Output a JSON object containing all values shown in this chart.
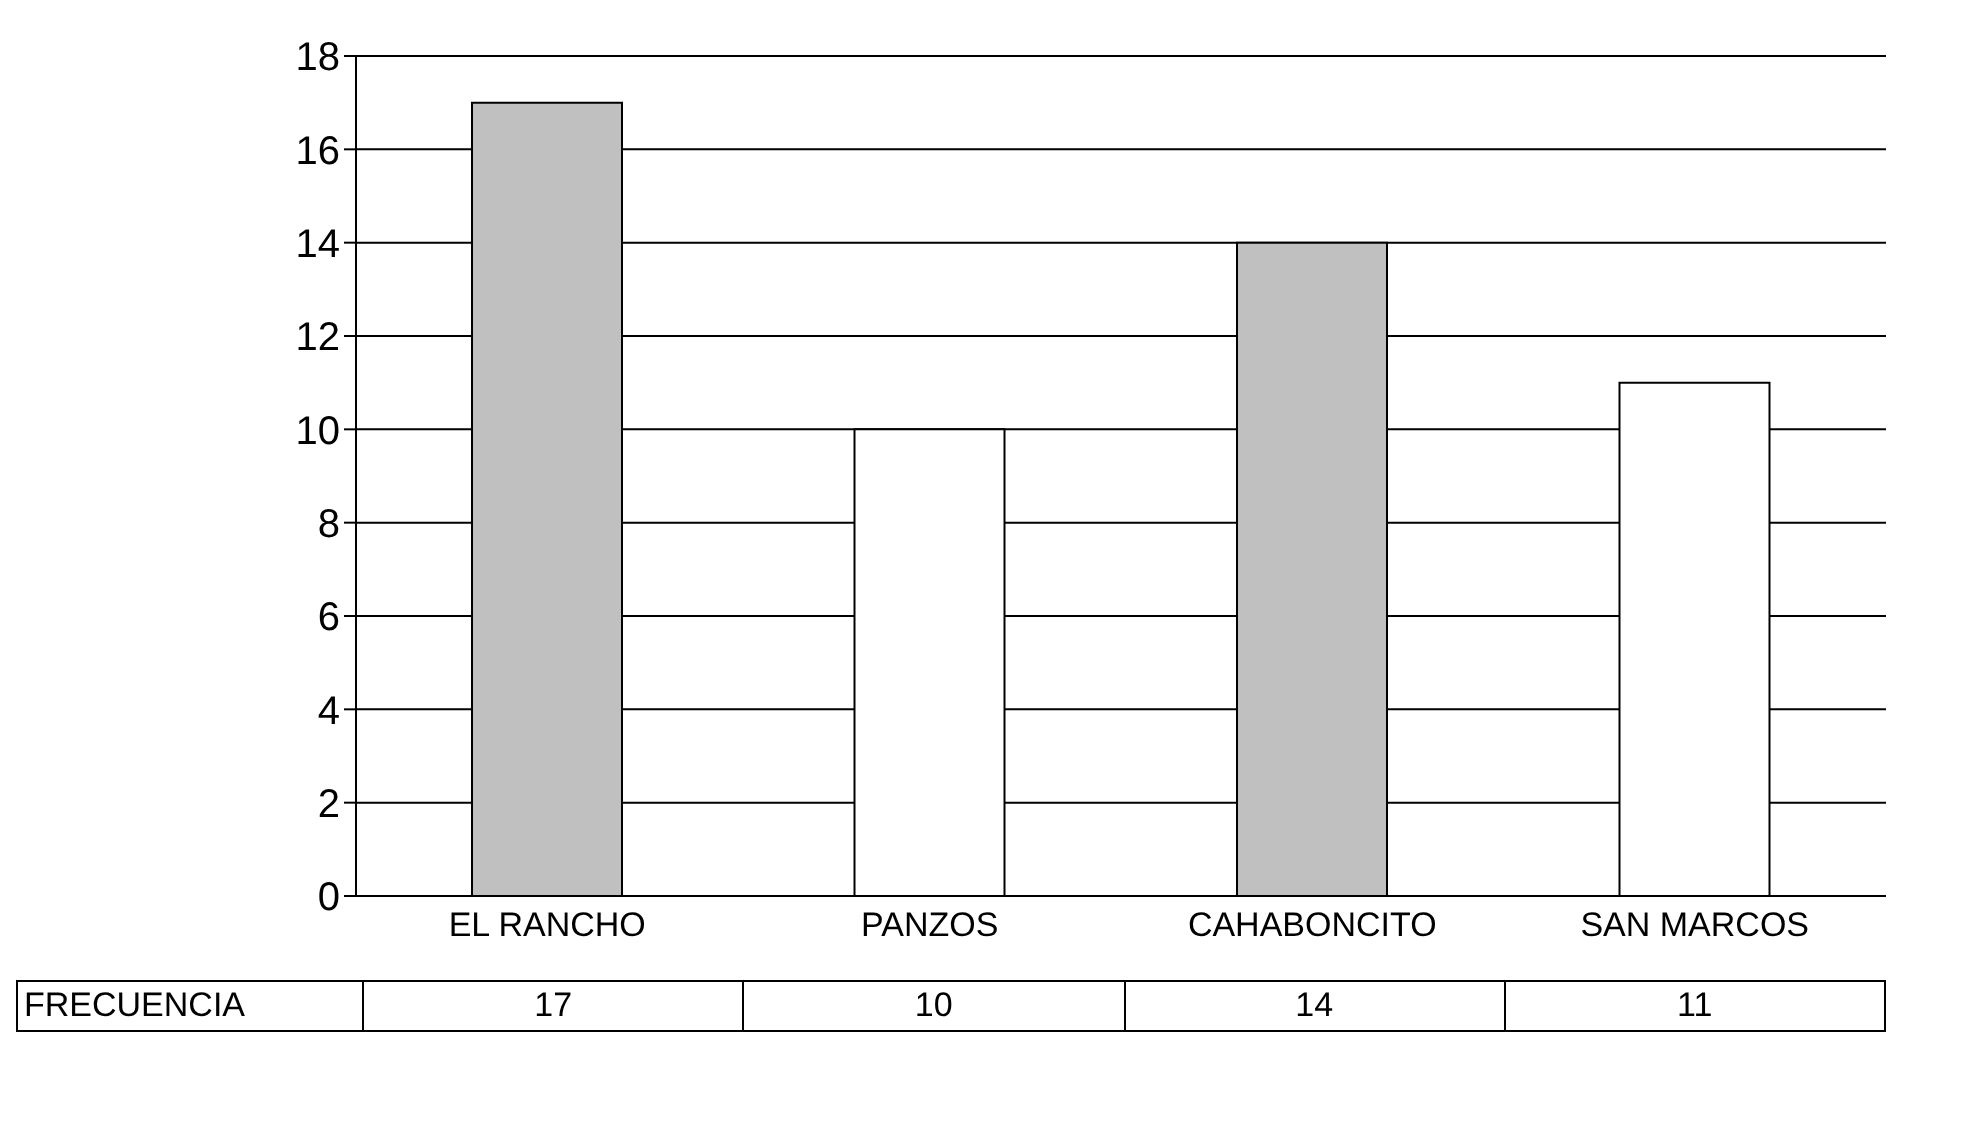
{
  "chart_data": {
    "type": "bar",
    "categories": [
      "EL RANCHO",
      "PANZOS",
      "CAHABONCITO",
      "SAN MARCOS"
    ],
    "series": [
      {
        "name": "FRECUENCIA",
        "values": [
          17,
          10,
          14,
          11
        ],
        "colors": [
          "#c0c0c0",
          "#ffffff",
          "#c0c0c0",
          "#ffffff"
        ]
      }
    ],
    "ylim": [
      0,
      18
    ],
    "yticks": [
      0,
      2,
      4,
      6,
      8,
      10,
      12,
      14,
      16,
      18
    ],
    "grid": "y",
    "data_labels": true
  }
}
